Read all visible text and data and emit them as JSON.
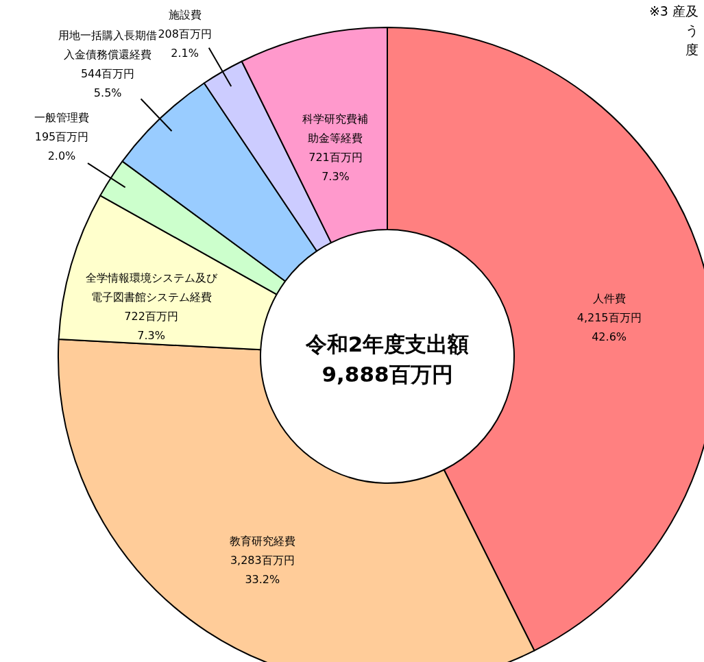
{
  "chart_data": {
    "type": "donut",
    "title": "令和2年度支出額9,888百万円",
    "categories": [
      "人件費",
      "教育研究経費",
      "全学情報環境システム及び電子図書館システム経費",
      "一般管理費",
      "用地一括購入長期借入金債務償還経費",
      "施設費",
      "科学研究費補助金等経費"
    ],
    "values": [
      4215,
      3283,
      722,
      195,
      544,
      208,
      721
    ],
    "colors": [
      "#ff8080",
      "#ffcc99",
      "#ffffcc",
      "#ccffcc",
      "#99ccff",
      "#ccccff",
      "#ff99cc"
    ],
    "value_labels": [
      "4,215百万円\n42.6%",
      "3,283百万円\n33.2%",
      "722百万円\n7.3%",
      "195百万円\n2.0%",
      "544百万円\n5.5%",
      "208百万円\n2.1%",
      "721百万円\n7.3%"
    ],
    "annotations": [
      "※3 産及う度"
    ]
  }
}
